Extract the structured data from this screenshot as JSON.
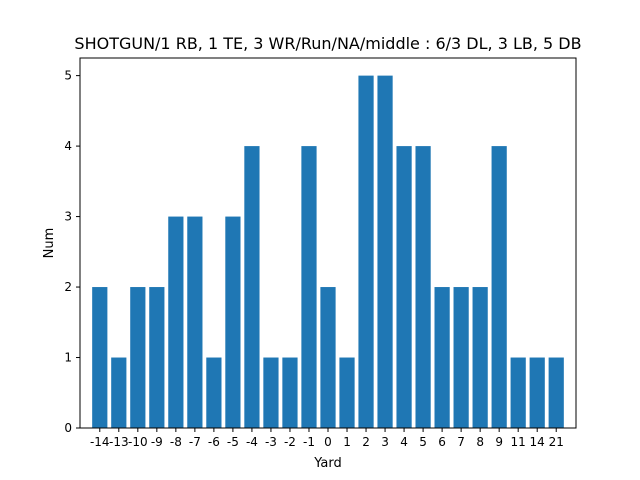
{
  "chart_data": {
    "type": "bar",
    "title": "SHOTGUN/1 RB, 1 TE, 3 WR/Run/NA/middle : 6/3 DL, 3 LB, 5 DB",
    "xlabel": "Yard",
    "ylabel": "Num",
    "categories": [
      "-14",
      "-13",
      "-10",
      "-9",
      "-8",
      "-7",
      "-6",
      "-5",
      "-4",
      "-3",
      "-2",
      "-1",
      "0",
      "1",
      "2",
      "3",
      "4",
      "5",
      "6",
      "7",
      "8",
      "9",
      "11",
      "14",
      "21"
    ],
    "values": [
      2,
      1,
      2,
      2,
      3,
      3,
      1,
      3,
      4,
      1,
      1,
      4,
      2,
      1,
      5,
      5,
      4,
      4,
      2,
      2,
      2,
      4,
      1,
      1,
      1
    ],
    "ylim": [
      0,
      5.25
    ],
    "yticks": [
      0,
      1,
      2,
      3,
      4,
      5
    ],
    "bar_color": "#1f77b4",
    "grid": false,
    "legend": "none"
  }
}
